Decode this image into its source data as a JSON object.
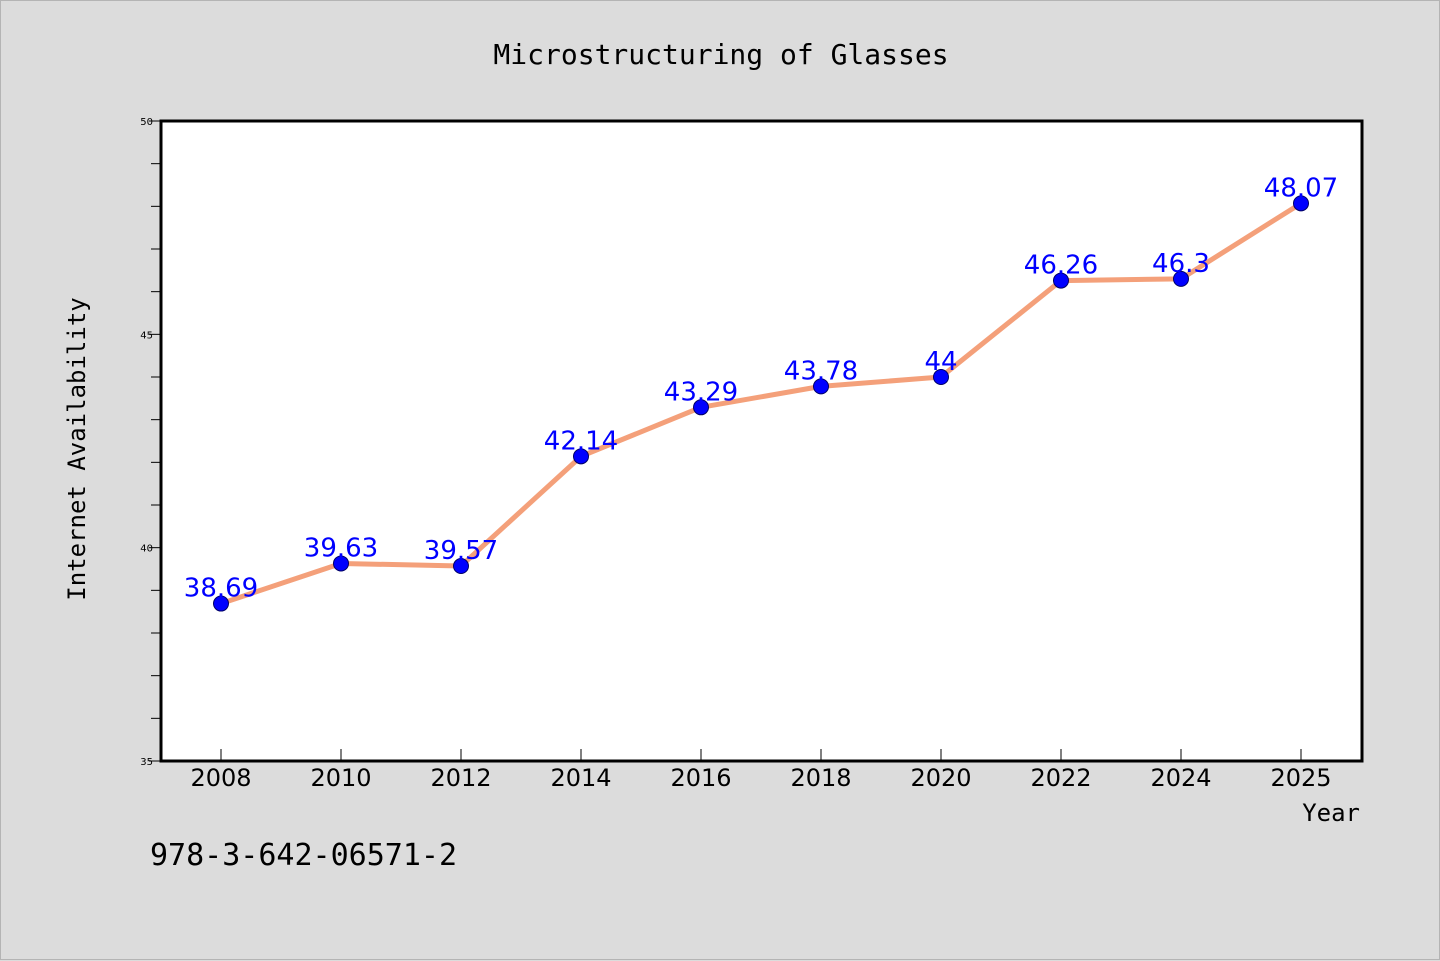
{
  "chart_data": {
    "type": "line",
    "title": "Microstructuring of Glasses",
    "xlabel": "Year",
    "ylabel": "Internet Availability",
    "ylim": [
      35,
      50
    ],
    "yticks": [
      35,
      40,
      45,
      50
    ],
    "x": [
      "2008",
      "2010",
      "2012",
      "2014",
      "2016",
      "2018",
      "2020",
      "2022",
      "2024",
      "2025"
    ],
    "series": [
      {
        "values": [
          38.69,
          39.63,
          39.57,
          42.14,
          43.29,
          43.78,
          44,
          46.26,
          46.3,
          48.07
        ],
        "line_color": "#f4a07a",
        "marker_color": "#0000ff"
      }
    ],
    "data_labels": [
      "38.69",
      "39.63",
      "39.57",
      "42.14",
      "43.29",
      "43.78",
      "44",
      "46.26",
      "46.3",
      "48.07"
    ],
    "grid": false,
    "legend": "none"
  },
  "footer": {
    "isbn": "978-3-642-06571-2"
  }
}
